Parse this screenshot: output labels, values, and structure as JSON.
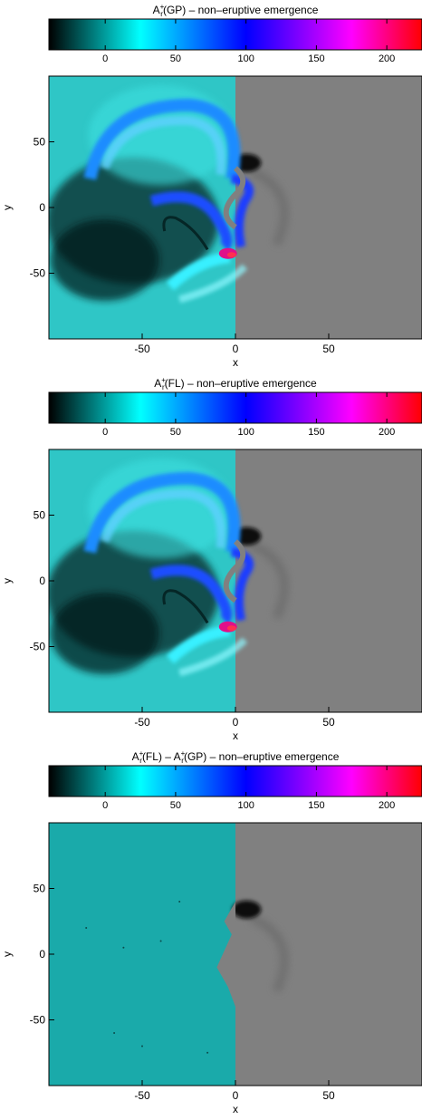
{
  "chart_data": [
    {
      "type": "heatmap",
      "title": {
        "main": "A",
        "sub": "r",
        "sup": "+",
        "rest": "(GP) – non–eruptive emergence"
      },
      "colorbar": {
        "range": [
          -40,
          225
        ],
        "ticks": [
          0,
          50,
          100,
          150,
          200
        ],
        "colors": [
          "#000000",
          "#00ffff",
          "#0000ff",
          "#ff00ff",
          "#ff0000"
        ],
        "stops": [
          -40,
          25,
          100,
          175,
          225
        ]
      },
      "xlabel": "x",
      "ylabel": "y",
      "xlim": [
        -100,
        100
      ],
      "ylim": [
        -100,
        100
      ],
      "xticks": [
        -50,
        0,
        50
      ],
      "yticks": [
        50,
        0,
        -50
      ],
      "left_region_color": "#2fc6c6",
      "right_region_color": "#808080",
      "variant": "gp"
    },
    {
      "type": "heatmap",
      "title": {
        "main": "A",
        "sub": "r",
        "sup": "+",
        "rest": "(FL) – non–eruptive emergence"
      },
      "colorbar": {
        "range": [
          -40,
          225
        ],
        "ticks": [
          0,
          50,
          100,
          150,
          200
        ],
        "colors": [
          "#000000",
          "#00ffff",
          "#0000ff",
          "#ff00ff",
          "#ff0000"
        ],
        "stops": [
          -40,
          25,
          100,
          175,
          225
        ]
      },
      "xlabel": "x",
      "ylabel": "y",
      "xlim": [
        -100,
        100
      ],
      "ylim": [
        -100,
        100
      ],
      "xticks": [
        -50,
        0,
        50
      ],
      "yticks": [
        50,
        0,
        -50
      ],
      "left_region_color": "#2fc6c6",
      "right_region_color": "#808080",
      "variant": "fl"
    },
    {
      "type": "heatmap",
      "title": {
        "main": "A",
        "sub": "r",
        "sup": "+",
        "rest": "(FL) – A",
        "sub2": "r",
        "sup2": "+",
        "rest2": "(GP) – non–eruptive emergence"
      },
      "colorbar": {
        "range": [
          -40,
          225
        ],
        "ticks": [
          0,
          50,
          100,
          150,
          200
        ],
        "colors": [
          "#000000",
          "#00ffff",
          "#0000ff",
          "#ff00ff",
          "#ff0000"
        ],
        "stops": [
          -40,
          25,
          100,
          175,
          225
        ]
      },
      "xlabel": "x",
      "ylabel": "y",
      "xlim": [
        -100,
        100
      ],
      "ylim": [
        -100,
        100
      ],
      "xticks": [
        -50,
        0,
        50
      ],
      "yticks": [
        50,
        0,
        -50
      ],
      "left_region_color": "#1aaaaa",
      "right_region_color": "#808080",
      "variant": "diff"
    }
  ]
}
